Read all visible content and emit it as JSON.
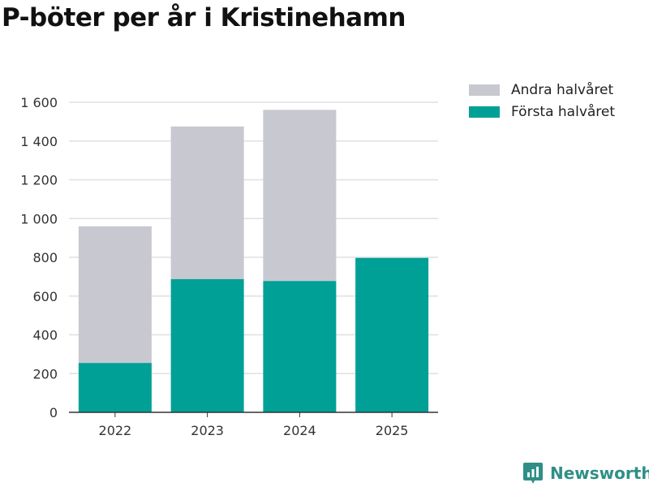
{
  "chart_data": {
    "type": "bar",
    "stacked": true,
    "title": "P-böter per år i Kristinehamn",
    "categories": [
      "2022",
      "2023",
      "2024",
      "2025"
    ],
    "series": [
      {
        "name": "Första halvåret",
        "color": "#00a096",
        "values": [
          255,
          688,
          678,
          797
        ]
      },
      {
        "name": "Andra halvåret",
        "color": "#c8c8d0",
        "values": [
          705,
          787,
          883,
          0
        ]
      }
    ],
    "legend_order": [
      "Andra halvåret",
      "Första halvåret"
    ],
    "yticks": [
      0,
      200,
      400,
      600,
      800,
      1000,
      1200,
      1400,
      1600
    ],
    "ytick_labels": [
      "0",
      "200",
      "400",
      "600",
      "800",
      "1 000",
      "1 200",
      "1 400",
      "1 600"
    ],
    "ylim": [
      0,
      1700
    ],
    "xlabel": "",
    "ylabel": "",
    "grid": true,
    "legend_position": "top-right"
  },
  "branding": {
    "text": "Newsworthy",
    "color": "#2f8f86"
  }
}
